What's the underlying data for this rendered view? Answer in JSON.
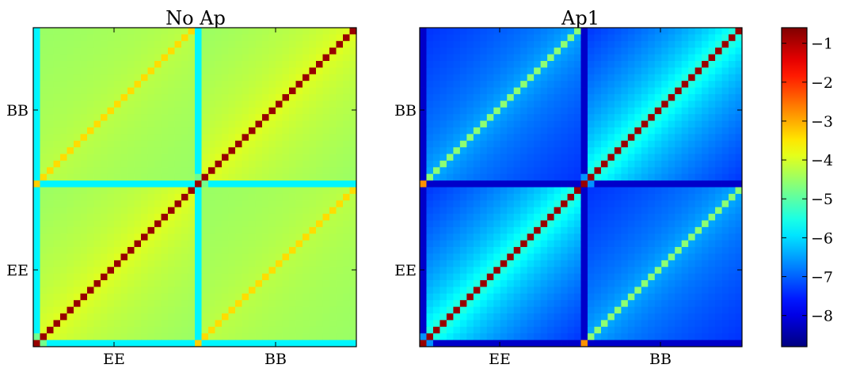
{
  "chart_data": [
    {
      "type": "heatmap",
      "title": "No Ap",
      "x_tick_labels": [
        "EE",
        "BB"
      ],
      "y_tick_labels": [
        "EE",
        "BB"
      ],
      "grid_size": 48,
      "blocks": [
        "EE",
        "BB"
      ],
      "diagonal_value": -0.8,
      "corner_values": {
        "EE-EE-first": -1.2,
        "BB-BB-first": -3.3
      },
      "offdiagonal_near_value": -3.8,
      "offdiagonal_far_value": -4.5,
      "first_row_col_value": -5.8,
      "cross_block_diagonal_value": -3.4
    },
    {
      "type": "heatmap",
      "title": "Ap1",
      "x_tick_labels": [
        "EE",
        "BB"
      ],
      "y_tick_labels": [
        "EE",
        "BB"
      ],
      "grid_size": 48,
      "blocks": [
        "EE",
        "BB"
      ],
      "diagonal_value": -0.8,
      "corner_values": {
        "EE-EE-first": -2.8,
        "BB-BB-first": -2.8
      },
      "offdiagonal_near_value": -5.0,
      "offdiagonal_far_value": -7.4,
      "first_row_col_value": -8.2,
      "cross_block_diagonal_value": -4.6
    }
  ],
  "colorbar": {
    "range": [
      -8.8,
      -0.6
    ],
    "ticks": [
      "−1",
      "−2",
      "−3",
      "−4",
      "−5",
      "−6",
      "−7",
      "−8"
    ],
    "tick_values": [
      -1,
      -2,
      -3,
      -4,
      -5,
      -6,
      -7,
      -8
    ],
    "colormap": "jet"
  }
}
